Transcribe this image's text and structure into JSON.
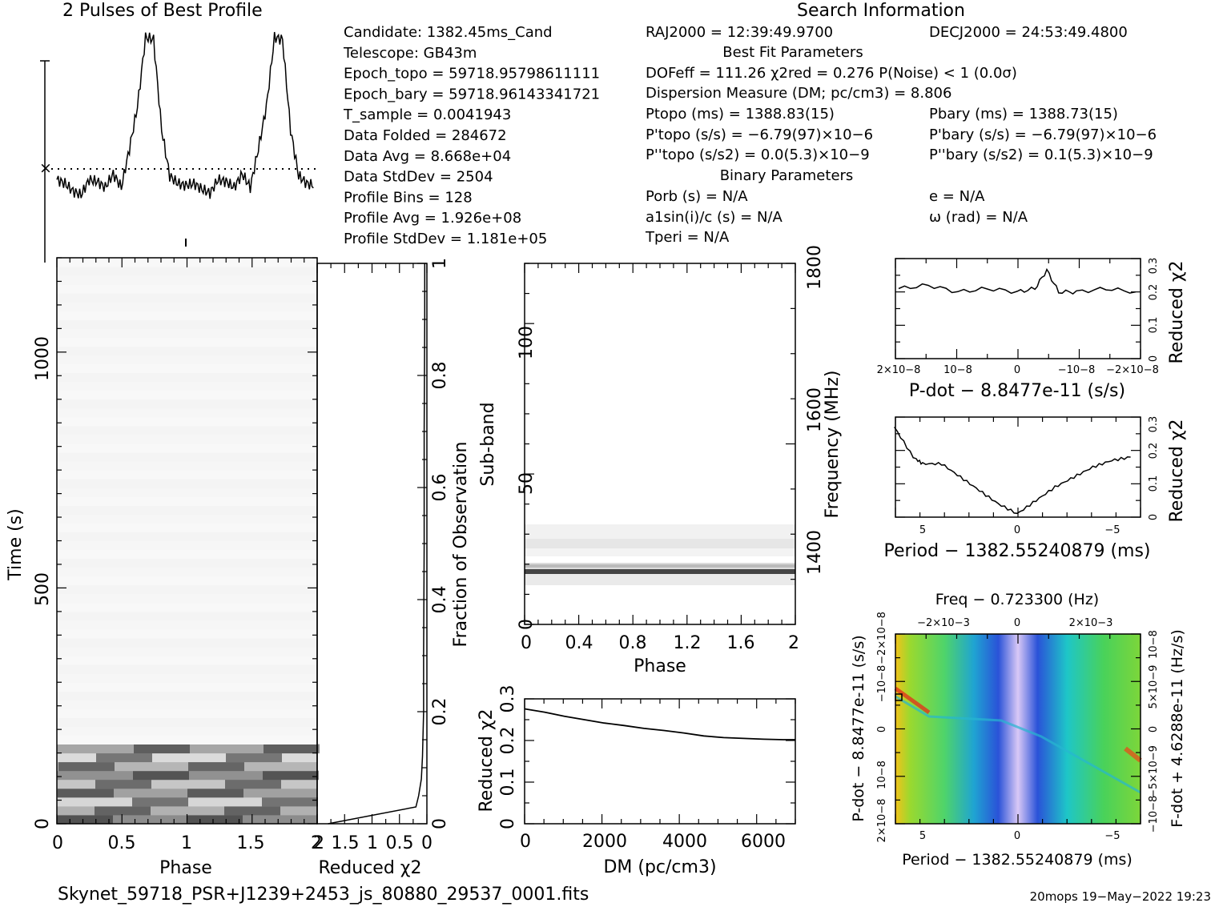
{
  "chart_data": [
    {
      "type": "line",
      "title": "2 Pulses of Best Profile",
      "x": [
        0,
        0.0625,
        0.125,
        0.1875,
        0.25,
        0.3125,
        0.375,
        0.4375,
        0.5,
        0.5625,
        0.625,
        0.6875,
        0.75,
        0.8125,
        0.875,
        0.9375,
        1,
        1.0625,
        1.125,
        1.1875,
        1.25,
        1.3125,
        1.375,
        1.4375,
        1.5,
        1.5625,
        1.625,
        1.6875,
        1.75,
        1.8125,
        1.875,
        1.9375,
        2
      ],
      "values": [
        0.24,
        0.22,
        0.18,
        0.16,
        0.24,
        0.23,
        0.2,
        0.27,
        0.2,
        0.4,
        0.62,
        0.98,
        0.97,
        0.5,
        0.26,
        0.22,
        0.21,
        0.22,
        0.19,
        0.17,
        0.24,
        0.23,
        0.2,
        0.27,
        0.2,
        0.4,
        0.62,
        0.98,
        0.97,
        0.5,
        0.26,
        0.22,
        0.21
      ]
    },
    {
      "type": "heatmap",
      "xlabel": "Phase",
      "ylabel": "Time (s)",
      "xticks": [
        "0",
        "0.5",
        "1",
        "1.5",
        "2"
      ],
      "yticks": [
        "0",
        "500",
        "1000"
      ],
      "xlim": [
        0,
        2
      ],
      "ylim": [
        0,
        1230
      ]
    },
    {
      "type": "line",
      "xlabel": "Reduced χ2",
      "ylabel": "Fraction of Observation",
      "xticks": [
        "2",
        "1.5",
        "1",
        "0.5",
        "0"
      ],
      "yticks": [
        "0",
        "0.2",
        "0.4",
        "0.6",
        "0.8",
        "1"
      ],
      "x": [
        0.0,
        0.03,
        0.05,
        0.08,
        0.12,
        0.2,
        0.3,
        0.5,
        0.7,
        0.9,
        1.0
      ],
      "values": [
        1.8,
        0.2,
        0.15,
        0.1,
        0.08,
        0.06,
        0.06,
        0.05,
        0.05,
        0.04,
        0.04
      ]
    },
    {
      "type": "heatmap",
      "xlabel": "Phase",
      "ylabel": "Sub-band",
      "y2label": "Frequency (MHz)",
      "xticks": [
        "0",
        "0.4",
        "0.8",
        "1.2",
        "1.6",
        "2"
      ],
      "yticks": [
        "0",
        "50",
        "100"
      ],
      "y2ticks": [
        "1400",
        "1600",
        "1800"
      ],
      "xlim": [
        0,
        2
      ],
      "ylim": [
        0,
        128
      ]
    },
    {
      "type": "line",
      "xlabel": "DM (pc/cm3)",
      "ylabel": "Reduced χ2",
      "xticks": [
        "0",
        "2000",
        "4000",
        "6000"
      ],
      "yticks": [
        "0",
        "0.1",
        "0.2",
        "0.3"
      ],
      "x": [
        0,
        500,
        1000,
        1500,
        2000,
        2500,
        3000,
        3500,
        4000,
        4500,
        5000,
        5500,
        6000,
        6500,
        6800
      ],
      "values": [
        0.276,
        0.268,
        0.258,
        0.25,
        0.242,
        0.236,
        0.229,
        0.224,
        0.218,
        0.211,
        0.207,
        0.205,
        0.203,
        0.202,
        0.202
      ],
      "xlim": [
        0,
        6800
      ],
      "ylim": [
        0,
        0.3
      ]
    },
    {
      "type": "line",
      "xlabel": "P-dot − 8.8477e-11 (s/s)",
      "ylabel": "Reduced χ2",
      "xticks": [
        "2×10−8",
        "10−8",
        "0",
        "−10−8",
        "−2×10−8"
      ],
      "yticks": [
        "0",
        "0.1",
        "0.2",
        "0.3"
      ],
      "x": [
        2e-08,
        1.5e-08,
        1e-08,
        5e-09,
        0,
        -3e-09,
        -5e-09,
        -7e-09,
        -1e-08,
        -1.5e-08,
        -2e-08
      ],
      "values": [
        0.21,
        0.22,
        0.2,
        0.21,
        0.2,
        0.21,
        0.265,
        0.2,
        0.2,
        0.21,
        0.2
      ],
      "ylim": [
        0,
        0.3
      ]
    },
    {
      "type": "line",
      "xlabel": "Period − 1382.55240879 (ms)",
      "ylabel": "Reduced χ2",
      "xticks": [
        "5",
        "0",
        "−5"
      ],
      "yticks": [
        "0",
        "0.1",
        "0.2",
        "0.3"
      ],
      "x": [
        6.5,
        5.5,
        5,
        4,
        3,
        2,
        1,
        0,
        -1,
        -2,
        -3,
        -4,
        -5,
        -6
      ],
      "values": [
        0.27,
        0.18,
        0.16,
        0.16,
        0.12,
        0.08,
        0.04,
        0.01,
        0.05,
        0.09,
        0.12,
        0.15,
        0.17,
        0.18
      ],
      "ylim": [
        0,
        0.3
      ]
    },
    {
      "type": "heatmap",
      "title": "Freq − 0.723300 (Hz)",
      "xlabel": "Period − 1382.55240879 (ms)",
      "ylabel": "P-dot − 8.8477e-11 (s/s)",
      "y2label": "F-dot + 4.6288e-11 (Hz/s)",
      "xticks": [
        "5",
        "0",
        "−5"
      ],
      "x2ticks": [
        "−2×10−3",
        "0",
        "2×10−3"
      ],
      "yticks": [
        "2×10−8",
        "10−8",
        "0",
        "−10−8",
        "−2×10−8"
      ],
      "y2ticks": [
        "−10−8",
        "−5×10−9",
        "0",
        "5×10−9",
        "10−8"
      ]
    }
  ],
  "info": {
    "header": "Search Information",
    "rows_left": [
      [
        "Candidate:  1382.45ms_Cand"
      ],
      [
        "Telescope:  GB43m"
      ],
      [
        "Epoch_topo = 59718.95798611111"
      ],
      [
        "Epoch_bary = 59718.96143341721"
      ],
      [
        "T_sample      =  0.0041943"
      ],
      [
        "Data Folded   =  284672"
      ],
      [
        "Data Avg      =  8.668e+04"
      ],
      [
        "Data StdDev   =  2504"
      ],
      [
        "Profile Bins  =  128"
      ],
      [
        "Profile Avg   =  1.926e+08"
      ],
      [
        "Profile StdDev =  1.181e+05"
      ]
    ],
    "ra": "RAJ2000 = 12:39:49.9700",
    "dec": "DECJ2000 = 24:53:49.4800",
    "best_fit_header": "Best Fit Parameters",
    "dof": "DOFeff = 111.26  χ2red = 0.276  P(Noise) < 1  (0.0σ)",
    "dm": "Dispersion Measure (DM; pc/cm3) = 8.806",
    "ptopo": "Ptopo (ms) =  1388.83(15)",
    "pbary": "Pbary (ms) =  1388.73(15)",
    "pdtopo": "P'topo (s/s) = −6.79(97)×10−6",
    "pdbary": "P'bary (s/s) = −6.79(97)×10−6",
    "pddtopo": "P''topo (s/s2) = 0.0(5.3)×10−9",
    "pddbary": "P''bary (s/s2) =  0.1(5.3)×10−9",
    "binary_header": "Binary Parameters",
    "porb": "Porb (s) = N/A",
    "e": "e = N/A",
    "a1": "a1sin(i)/c (s) = N/A",
    "omega": "ω (rad) = N/A",
    "tperi": "Tperi = N/A"
  },
  "footer": {
    "filename": "Skynet_59718_PSR+J1239+2453_js_80880_29537_0001.fits",
    "stamp": "20mops 19−May−2022 19:23"
  }
}
